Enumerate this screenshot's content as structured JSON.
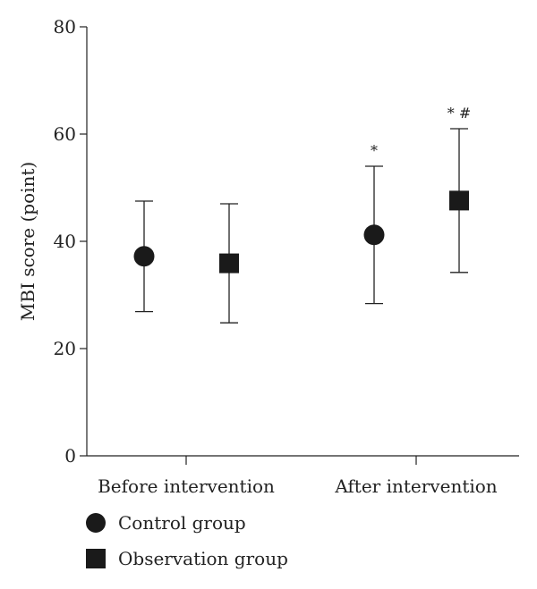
{
  "chart_data": {
    "type": "scatter",
    "ylabel": "MBI score (point)",
    "xlabel": "",
    "ylim": [
      0,
      80
    ],
    "yticks": [
      0,
      20,
      40,
      60,
      80
    ],
    "categories": [
      "Before intervention",
      "After intervention"
    ],
    "grid": false,
    "legend_position": "bottom-left",
    "series": [
      {
        "name": "Control group",
        "marker": "circle",
        "color": "#1a1a1a",
        "values": [
          37.2,
          41.2
        ],
        "errors": [
          10.3,
          12.8
        ],
        "annotations": [
          "",
          "*"
        ]
      },
      {
        "name": "Observation group",
        "marker": "square",
        "color": "#1a1a1a",
        "values": [
          35.9,
          47.6
        ],
        "errors": [
          11.1,
          13.4
        ],
        "annotations": [
          "",
          "* #"
        ]
      }
    ]
  }
}
